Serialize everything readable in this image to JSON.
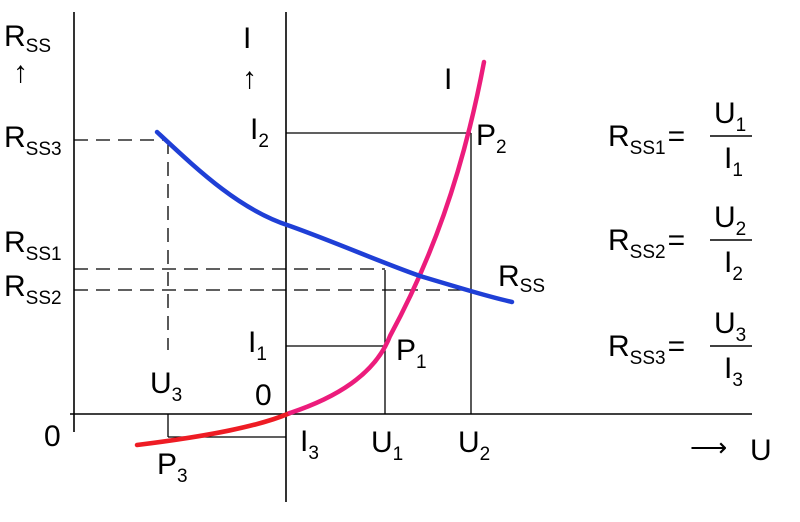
{
  "axes": {
    "rss_axis": {
      "main": "R",
      "sub": "SS",
      "arrow": "↑"
    },
    "i_axis": {
      "main": "I",
      "arrow": "↑"
    },
    "u_axis": {
      "main": "U",
      "arrow": "⟶"
    },
    "left_origin": "0",
    "center_origin": "0"
  },
  "curves": {
    "current": {
      "label": "I",
      "color": "#ec1c7c"
    },
    "current_low": {
      "color": "#ee1c24"
    },
    "resistance": {
      "label_main": "R",
      "label_sub": "SS",
      "color": "#1f3fd6"
    }
  },
  "points": [
    {
      "main": "P",
      "sub": "1"
    },
    {
      "main": "P",
      "sub": "2"
    },
    {
      "main": "P",
      "sub": "3"
    }
  ],
  "ticks": {
    "rss": [
      {
        "main": "R",
        "sub": "SS3"
      },
      {
        "main": "R",
        "sub": "SS1"
      },
      {
        "main": "R",
        "sub": "SS2"
      }
    ],
    "i": [
      {
        "main": "I",
        "sub": "2"
      },
      {
        "main": "I",
        "sub": "1"
      },
      {
        "main": "I",
        "sub": "3"
      }
    ],
    "u": [
      {
        "main": "U",
        "sub": "3"
      },
      {
        "main": "U",
        "sub": "1"
      },
      {
        "main": "U",
        "sub": "2"
      }
    ]
  },
  "formulas": [
    {
      "lhs_main": "R",
      "lhs_sub": "SS1",
      "eq": "=",
      "num_main": "U",
      "num_sub": "1",
      "den_main": "I",
      "den_sub": "1"
    },
    {
      "lhs_main": "R",
      "lhs_sub": "SS2",
      "eq": "=",
      "num_main": "U",
      "num_sub": "2",
      "den_main": "I",
      "den_sub": "2"
    },
    {
      "lhs_main": "R",
      "lhs_sub": "SS3",
      "eq": "=",
      "num_main": "U",
      "num_sub": "3",
      "den_main": "I",
      "den_sub": "3"
    }
  ]
}
